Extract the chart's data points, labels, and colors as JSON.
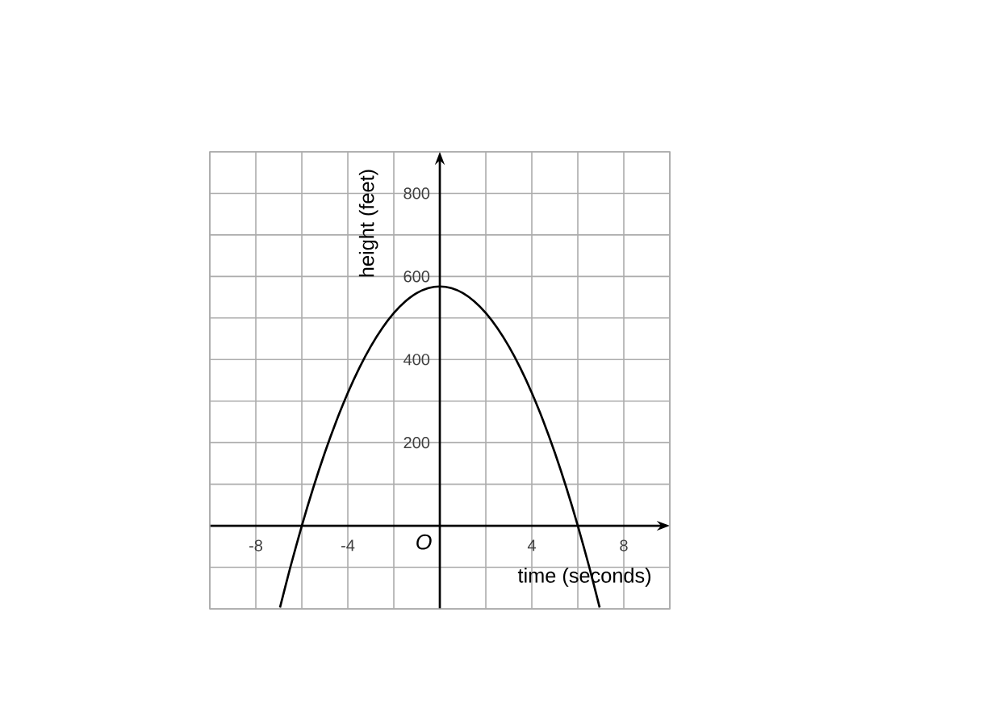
{
  "chart_data": {
    "type": "line",
    "xlabel": "time (seconds)",
    "ylabel": "height (feet)",
    "annotations": [
      "O"
    ],
    "x": [
      -6.95,
      -6.5,
      -6,
      -5.5,
      -5,
      -4.5,
      -4,
      -3.5,
      -3,
      -2.5,
      -2,
      -1.5,
      -1,
      -0.5,
      0,
      0.5,
      1,
      1.5,
      2,
      2.5,
      3,
      3.5,
      4,
      4.5,
      5,
      5.5,
      6,
      6.5,
      6.95
    ],
    "values": [
      -197,
      -100,
      0,
      92,
      176,
      252,
      320,
      380,
      432,
      476,
      512,
      540,
      560,
      572,
      576,
      572,
      560,
      540,
      512,
      476,
      432,
      380,
      320,
      252,
      176,
      92,
      0,
      -100,
      -197
    ],
    "color": "#000000",
    "xlim": [
      -10,
      10
    ],
    "ylim": [
      -200,
      900
    ],
    "xticks": [
      {
        "value": -10,
        "label": null
      },
      -8,
      {
        "value": -6,
        "label": null
      },
      -4,
      {
        "value": -2,
        "label": null
      },
      {
        "value": 0,
        "label": null
      },
      {
        "value": 2,
        "label": null
      },
      4,
      {
        "value": 6,
        "label": null
      },
      8,
      {
        "value": 10,
        "label": null
      }
    ],
    "yticks": [
      {
        "value": -200,
        "label": null
      },
      {
        "value": -100,
        "label": null
      },
      {
        "value": 0,
        "label": null
      },
      {
        "value": 100,
        "label": null
      },
      200,
      {
        "value": 300,
        "label": null
      },
      400,
      {
        "value": 500,
        "label": null
      },
      600,
      {
        "value": 700,
        "label": null
      },
      800,
      {
        "value": 900,
        "label": null
      }
    ],
    "grid": true
  }
}
